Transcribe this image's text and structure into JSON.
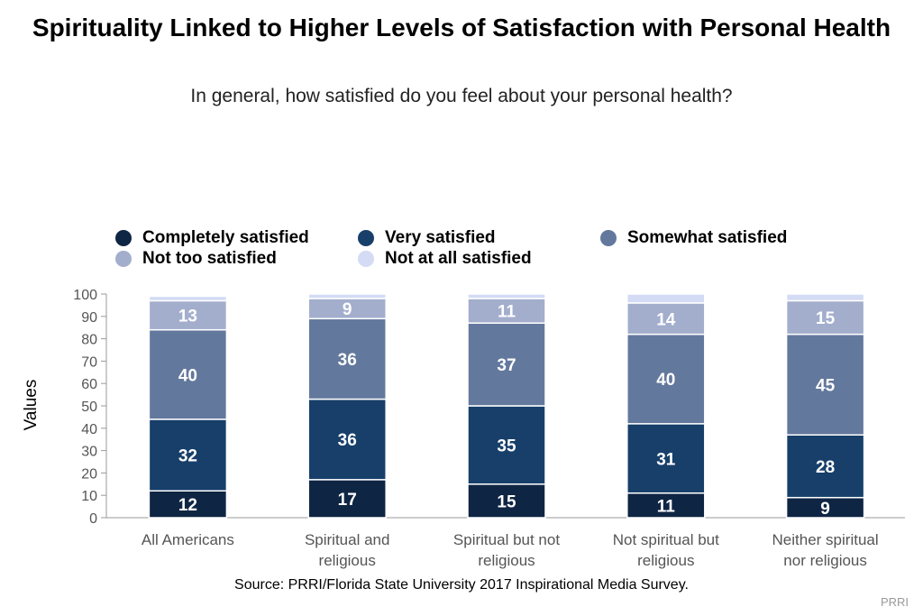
{
  "title": "Spirituality Linked to Higher Levels of Satisfaction with Personal Health",
  "subtitle": "In general, how satisfied do you feel about your personal health?",
  "source": "Source: PRRI/Florida State University 2017 Inspirational Media Survey.",
  "credit": "PRRI",
  "chart_data": {
    "type": "bar",
    "stacked": true,
    "title": "Spirituality Linked to Higher Levels of Satisfaction with Personal Health",
    "subtitle": "In general, how satisfied do you feel about your personal health?",
    "xlabel": "",
    "ylabel": "Values",
    "ylim": [
      0,
      100
    ],
    "yticks": [
      0,
      10,
      20,
      30,
      40,
      50,
      60,
      70,
      80,
      90,
      100
    ],
    "grid": false,
    "legend_position": "top",
    "categories": [
      [
        "All Americans"
      ],
      [
        "Spiritual and",
        "religious"
      ],
      [
        "Spiritual but not",
        "religious"
      ],
      [
        "Not spiritual but",
        "religious"
      ],
      [
        "Neither spiritual",
        "nor religious"
      ]
    ],
    "series": [
      {
        "name": "Completely satisfied",
        "color": "#0f2544",
        "values": [
          12,
          17,
          15,
          11,
          9
        ]
      },
      {
        "name": "Very satisfied",
        "color": "#173f6a",
        "values": [
          32,
          36,
          35,
          31,
          28
        ]
      },
      {
        "name": "Somewhat satisfied",
        "color": "#63789d",
        "values": [
          40,
          36,
          37,
          40,
          45
        ]
      },
      {
        "name": "Not too satisfied",
        "color": "#a3aecd",
        "values": [
          13,
          9,
          11,
          14,
          15
        ]
      },
      {
        "name": "Not at all satisfied",
        "color": "#d3dbf5",
        "values": [
          2,
          2,
          2,
          4,
          3
        ]
      }
    ],
    "label_threshold": 5
  }
}
